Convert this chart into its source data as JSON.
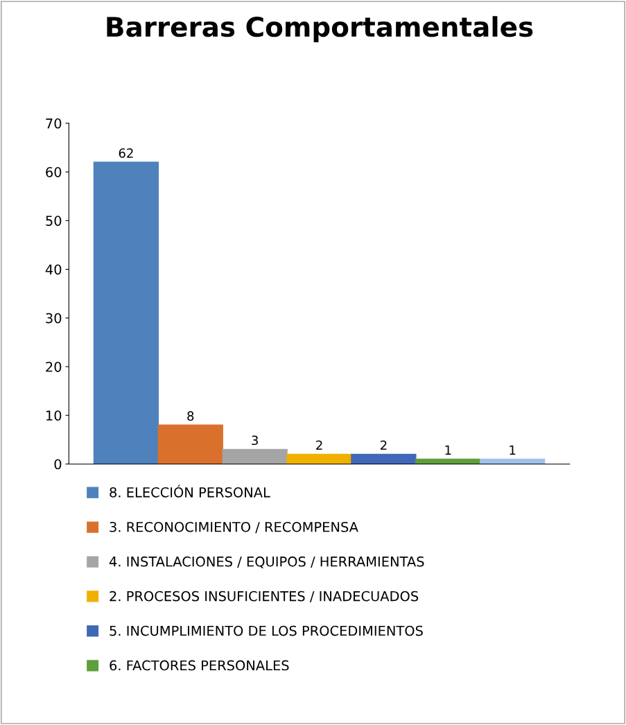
{
  "chart_data": {
    "type": "bar",
    "title": "Barreras Comportamentales",
    "categories": [
      null
    ],
    "series": [
      {
        "name": "8. ELECCIÓN PERSONAL",
        "color": "#4f81bd",
        "values": [
          62
        ]
      },
      {
        "name": "3. RECONOCIMIENTO / RECOMPENSA",
        "color": "#d9712c",
        "values": [
          8
        ]
      },
      {
        "name": "4. INSTALACIONES / EQUIPOS / HERRAMIENTAS",
        "color": "#a5a5a5",
        "values": [
          3
        ]
      },
      {
        "name": "2. PROCESOS INSUFICIENTES / INADECUADOS",
        "color": "#f0b000",
        "values": [
          2
        ]
      },
      {
        "name": "5. INCUMPLIMIENTO DE LOS PROCEDIMIENTOS",
        "color": "#3f68b8",
        "values": [
          2
        ]
      },
      {
        "name": "6. FACTORES PERSONALES",
        "color": "#5f9e3c",
        "values": [
          1
        ]
      },
      {
        "color": "#9fc2ea",
        "values": [
          1
        ]
      }
    ],
    "ylim": [
      0,
      70
    ],
    "yticks": [
      0,
      10,
      20,
      30,
      40,
      50,
      60,
      70
    ],
    "grid": false,
    "legend": "bottom",
    "data_labels": true
  }
}
